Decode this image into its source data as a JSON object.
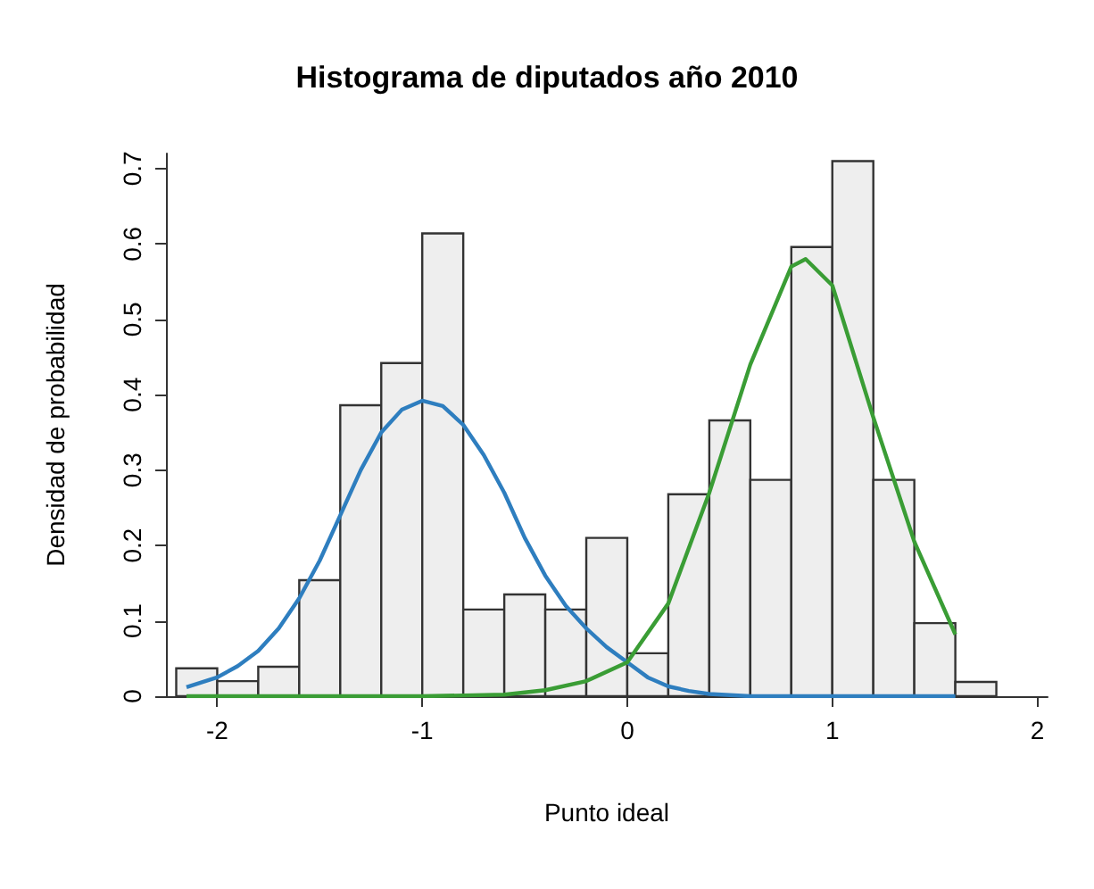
{
  "chart_data": {
    "type": "histogram",
    "title": "Histograma de diputados año 2010",
    "xlabel": "Punto ideal",
    "ylabel": "Densidad de probabilidad",
    "xlim": [
      -2.25,
      2.05
    ],
    "ylim": [
      0,
      0.72
    ],
    "xticks": [
      -2,
      -1,
      0,
      1,
      2
    ],
    "yticks": [
      0,
      0.1,
      0.2,
      0.3,
      0.4,
      0.5,
      0.6,
      0.7
    ],
    "series": [
      {
        "color": "#eeeeee",
        "bins": [
          -2.2,
          -2.0,
          -1.8,
          -1.6,
          -1.4,
          -1.2,
          -1.0,
          -0.8,
          -0.6,
          -0.4,
          -0.2,
          0,
          0.2,
          0.4,
          0.6,
          0.8,
          1.0,
          1.2,
          1.4,
          1.6,
          1.8
        ],
        "values": [
          0.037,
          0.02,
          0.039,
          0.154,
          0.386,
          0.442,
          0.614,
          0.115,
          0.135,
          0.115,
          0.21,
          0.057,
          0.268,
          0.366,
          0.287,
          0.596,
          0.71,
          0.287,
          0.097,
          0.019
        ]
      },
      {
        "type": "line",
        "color": "#2e7ebf",
        "x": [
          -2.15,
          -2.0,
          -1.9,
          -1.8,
          -1.7,
          -1.6,
          -1.5,
          -1.4,
          -1.3,
          -1.2,
          -1.1,
          -1.0,
          -0.9,
          -0.8,
          -0.7,
          -0.6,
          -0.5,
          -0.4,
          -0.3,
          -0.2,
          -0.1,
          0,
          0.1,
          0.2,
          0.3,
          0.4,
          0.6,
          1.0,
          1.6
        ],
        "values": [
          0.012,
          0.025,
          0.04,
          0.06,
          0.09,
          0.13,
          0.18,
          0.24,
          0.3,
          0.35,
          0.38,
          0.392,
          0.385,
          0.36,
          0.32,
          0.27,
          0.21,
          0.16,
          0.12,
          0.09,
          0.065,
          0.045,
          0.025,
          0.013,
          0.007,
          0.003,
          0.0,
          0.0,
          0.0
        ]
      },
      {
        "type": "line",
        "color": "#3a9d35",
        "x": [
          -2.15,
          -1.0,
          -0.6,
          -0.4,
          -0.2,
          0,
          0.2,
          0.4,
          0.6,
          0.8,
          0.87,
          1.0,
          1.2,
          1.4,
          1.6
        ],
        "values": [
          0.0,
          0.0,
          0.002,
          0.008,
          0.02,
          0.045,
          0.123,
          0.27,
          0.44,
          0.57,
          0.58,
          0.545,
          0.37,
          0.205,
          0.082
        ]
      }
    ]
  }
}
